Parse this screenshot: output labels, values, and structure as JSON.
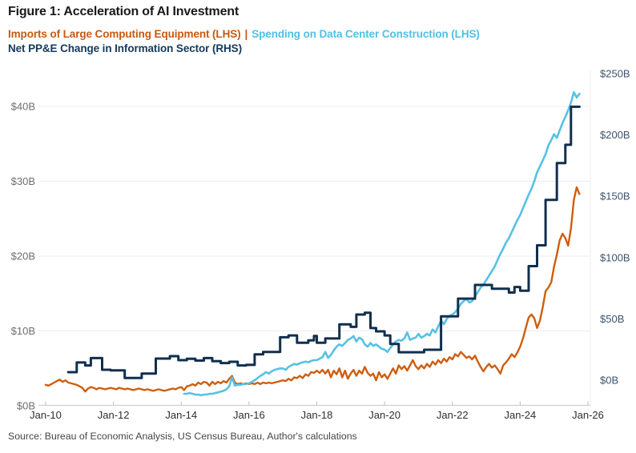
{
  "title": "Figure 1: Acceleration of AI Investment",
  "legend": {
    "series1": "Imports of Large Computing Equipment (LHS)",
    "separator": "|",
    "series2": "Spending on Data Center Construction (LHS)",
    "series3": "Net PP&E Change in Information Sector (RHS)"
  },
  "source": "Source: Bureau of Economic Analysis, US Census Bureau, Author's calculations",
  "colors": {
    "imports_line": "#ce5e0e",
    "construction_line": "#57c1e4",
    "ppe_line": "#112f4e",
    "legend_imports_text": "#c75a10",
    "legend_construction_text": "#4fc0e6",
    "legend_ppe_text": "#14395c",
    "gridline": "#ececec",
    "axis_line": "#cfcfcf",
    "tick": "#bfbfbf",
    "x_label_text": "#2e2e2e",
    "y_left_label_text": "#6e6e6e",
    "y_right_label_text": "#3d536d"
  },
  "chart_data": {
    "type": "line",
    "title": "Figure 1: Acceleration of AI Investment",
    "x_start": "Jan-2010",
    "x_end": "Jan-2026",
    "x_tick_labels": [
      "Jan-10",
      "Jan-12",
      "Jan-14",
      "Jan-16",
      "Jan-18",
      "Jan-20",
      "Jan-22",
      "Jan-24",
      "Jan-26"
    ],
    "x_tick_month_index": [
      0,
      24,
      48,
      72,
      96,
      120,
      144,
      168,
      192
    ],
    "y_axis_left": {
      "ticks": [
        {
          "value": 0,
          "label": "$0B"
        },
        {
          "value": 10,
          "label": "$10B"
        },
        {
          "value": 20,
          "label": "$20B"
        },
        {
          "value": 30,
          "label": "$30B"
        },
        {
          "value": 40,
          "label": "$40B"
        }
      ],
      "range": [
        0,
        45
      ],
      "grid": true
    },
    "y_axis_right": {
      "ticks": [
        {
          "value": 0,
          "label": "$0B"
        },
        {
          "value": 50,
          "label": "$50B"
        },
        {
          "value": 100,
          "label": "$100B"
        },
        {
          "value": 150,
          "label": "$150B"
        },
        {
          "value": 200,
          "label": "$200B"
        },
        {
          "value": 250,
          "label": "$250B"
        }
      ],
      "range": [
        0,
        270
      ],
      "grid": false
    },
    "legend_position": "top-left",
    "series": [
      {
        "name": "Imports of Large Computing Equipment (LHS)",
        "axis": "left",
        "units": "USD billions",
        "frequency": "monthly",
        "line_style": "linear",
        "color": "#ce5e0e",
        "start_month_index": 0,
        "values": [
          2.8,
          2.7,
          2.9,
          3.1,
          3.3,
          3.5,
          3.2,
          3.4,
          3.1,
          3.0,
          2.9,
          2.8,
          2.6,
          2.4,
          1.9,
          2.3,
          2.5,
          2.4,
          2.2,
          2.4,
          2.3,
          2.2,
          2.3,
          2.4,
          2.3,
          2.2,
          2.4,
          2.3,
          2.2,
          2.3,
          2.2,
          2.1,
          2.2,
          2.3,
          2.2,
          2.1,
          2.2,
          2.1,
          2.0,
          2.1,
          2.2,
          2.1,
          2.0,
          2.1,
          2.2,
          2.3,
          2.2,
          2.4,
          2.5,
          2.1,
          2.6,
          2.7,
          2.9,
          2.7,
          3.1,
          2.9,
          3.2,
          3.1,
          2.7,
          3.2,
          2.9,
          3.2,
          3.0,
          3.3,
          3.1,
          3.6,
          4.0,
          3.1,
          2.9,
          3.0,
          2.9,
          3.0,
          2.9,
          3.0,
          2.9,
          3.1,
          2.9,
          3.1,
          3.0,
          3.1,
          3.0,
          3.1,
          3.2,
          3.3,
          3.4,
          3.3,
          3.6,
          3.4,
          3.8,
          3.7,
          4.0,
          3.7,
          4.2,
          4.0,
          4.5,
          4.4,
          4.7,
          4.4,
          4.8,
          4.3,
          4.8,
          3.8,
          4.7,
          4.2,
          5.0,
          3.8,
          4.7,
          3.6,
          4.3,
          4.8,
          4.0,
          4.7,
          4.3,
          5.2,
          4.4,
          4.0,
          4.3,
          3.4,
          4.5,
          3.8,
          4.2,
          3.6,
          4.3,
          5.0,
          4.3,
          5.4,
          4.9,
          5.3,
          4.7,
          5.4,
          6.1,
          5.3,
          4.9,
          5.4,
          5.0,
          5.6,
          5.2,
          5.9,
          5.5,
          6.1,
          5.7,
          6.3,
          5.9,
          6.5,
          6.2,
          6.9,
          6.6,
          7.2,
          6.8,
          6.4,
          6.6,
          6.2,
          6.7,
          5.9,
          5.2,
          4.6,
          5.2,
          5.6,
          5.1,
          5.4,
          4.9,
          4.3,
          5.4,
          5.8,
          6.3,
          6.9,
          6.5,
          7.1,
          7.9,
          9.0,
          10.4,
          11.8,
          12.2,
          11.7,
          10.4,
          11.4,
          13.2,
          15.3,
          15.8,
          16.5,
          18.6,
          20.2,
          22.1,
          23.0,
          22.4,
          21.4,
          23.7,
          27.5,
          29.2,
          28.3
        ]
      },
      {
        "name": "Spending on Data Center Construction (LHS)",
        "axis": "left",
        "units": "USD billions",
        "frequency": "monthly",
        "line_style": "linear",
        "color": "#57c1e4",
        "start_month_index": 49,
        "values": [
          1.6,
          1.6,
          1.7,
          1.6,
          1.5,
          1.5,
          1.4,
          1.5,
          1.5,
          1.6,
          1.6,
          1.7,
          1.8,
          1.9,
          2.0,
          2.2,
          2.6,
          3.8,
          2.7,
          2.8,
          2.8,
          2.9,
          2.9,
          3.0,
          3.2,
          3.4,
          3.7,
          4.0,
          4.2,
          4.5,
          4.3,
          4.6,
          4.8,
          4.9,
          5.0,
          5.0,
          4.8,
          5.2,
          5.4,
          5.6,
          5.5,
          5.7,
          5.8,
          5.9,
          5.8,
          6.0,
          6.1,
          6.1,
          6.3,
          6.5,
          7.2,
          6.4,
          6.8,
          7.4,
          7.9,
          8.2,
          8.0,
          8.4,
          8.8,
          9.0,
          9.3,
          8.6,
          9.1,
          8.9,
          8.2,
          7.9,
          8.4,
          8.0,
          8.2,
          7.9,
          7.6,
          7.5,
          7.2,
          7.7,
          8.2,
          8.6,
          8.8,
          8.7,
          9.0,
          9.8,
          8.8,
          9.0,
          9.1,
          9.6,
          9.1,
          9.3,
          9.6,
          9.4,
          10.2,
          9.8,
          10.6,
          11.4,
          10.9,
          11.6,
          12.0,
          12.2,
          12.5,
          13.0,
          13.6,
          14.0,
          14.3,
          13.8,
          14.0,
          14.6,
          15.2,
          15.8,
          16.2,
          16.8,
          17.4,
          18.0,
          18.6,
          19.5,
          20.3,
          21.0,
          21.8,
          22.4,
          23.2,
          24.0,
          24.8,
          25.5,
          26.4,
          27.3,
          28.2,
          29.0,
          30.0,
          31.2,
          32.0,
          32.8,
          33.6,
          34.8,
          35.5,
          36.3,
          35.8,
          36.8,
          37.8,
          38.6,
          39.5,
          40.5,
          41.9,
          41.2,
          41.7
        ]
      },
      {
        "name": "Net PP&E Change in Information Sector (RHS)",
        "axis": "right",
        "units": "USD billions",
        "frequency": "quarterly",
        "line_style": "step-after",
        "color": "#112f4e",
        "points": [
          [
            8,
            6.5
          ],
          [
            11,
            14.4
          ],
          [
            14,
            12
          ],
          [
            16,
            18
          ],
          [
            20,
            8.5
          ],
          [
            23,
            8
          ],
          [
            28,
            1.8
          ],
          [
            34,
            5.4
          ],
          [
            39,
            17.6
          ],
          [
            44,
            19.6
          ],
          [
            47,
            16.3
          ],
          [
            50,
            17.5
          ],
          [
            53,
            16
          ],
          [
            56,
            18
          ],
          [
            59,
            15.5
          ],
          [
            62,
            14
          ],
          [
            65,
            15
          ],
          [
            68,
            12
          ],
          [
            71,
            12.5
          ],
          [
            74,
            21
          ],
          [
            77,
            23
          ],
          [
            83,
            35
          ],
          [
            86,
            36.5
          ],
          [
            89,
            30.5
          ],
          [
            93,
            32.5
          ],
          [
            95,
            36
          ],
          [
            96,
            30.5
          ],
          [
            99,
            34
          ],
          [
            104,
            45.5
          ],
          [
            108,
            43.5
          ],
          [
            110,
            53.5
          ],
          [
            113,
            55
          ],
          [
            115,
            42.5
          ],
          [
            117,
            39.8
          ],
          [
            120,
            36.5
          ],
          [
            122,
            29.5
          ],
          [
            125,
            22.8
          ],
          [
            134,
            24.8
          ],
          [
            140,
            52
          ],
          [
            146,
            66.5
          ],
          [
            152,
            77.7
          ],
          [
            158,
            74.6
          ],
          [
            164,
            71.5
          ],
          [
            166,
            76
          ],
          [
            168,
            73
          ],
          [
            171,
            93
          ],
          [
            174,
            110
          ],
          [
            177,
            147
          ],
          [
            181,
            177
          ],
          [
            184,
            192
          ],
          [
            186,
            223
          ],
          [
            189,
            223
          ]
        ]
      }
    ]
  }
}
